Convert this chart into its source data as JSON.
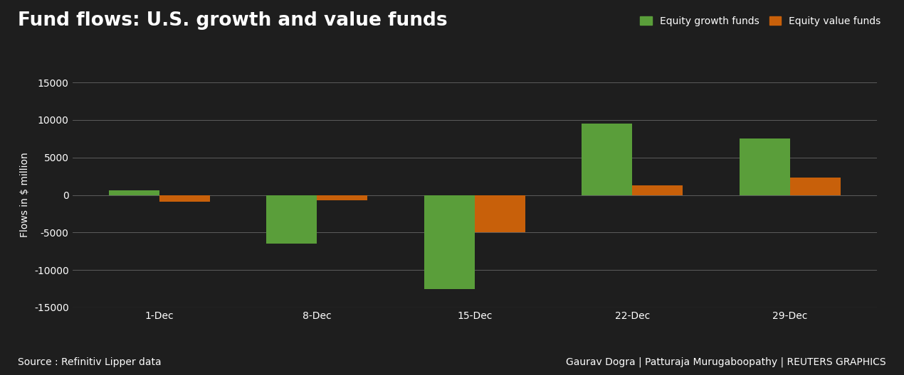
{
  "title": "Fund flows: U.S. growth and value funds",
  "categories": [
    "1-Dec",
    "8-Dec",
    "15-Dec",
    "22-Dec",
    "29-Dec"
  ],
  "growth_values": [
    600,
    -6500,
    -12500,
    9500,
    7500
  ],
  "value_values": [
    -900,
    -700,
    -5000,
    1300,
    2300
  ],
  "growth_color": "#5a9e3a",
  "value_color": "#c8600a",
  "background_color": "#1e1e1e",
  "plot_bg_color": "#1e1e1e",
  "text_color": "#ffffff",
  "grid_color": "#666666",
  "ylabel": "Flows in $ million",
  "ylim": [
    -15000,
    15000
  ],
  "yticks": [
    -15000,
    -10000,
    -5000,
    0,
    5000,
    10000,
    15000
  ],
  "legend_growth": "Equity growth funds",
  "legend_value": "Equity value funds",
  "source_text": "Source : Refinitiv Lipper data",
  "credit_text": "Gaurav Dogra | Patturaja Murugaboopathy | REUTERS GRAPHICS",
  "bar_width": 0.32,
  "title_fontsize": 19,
  "axis_fontsize": 10,
  "tick_fontsize": 10,
  "legend_fontsize": 10,
  "source_fontsize": 10,
  "credit_fontsize": 10
}
